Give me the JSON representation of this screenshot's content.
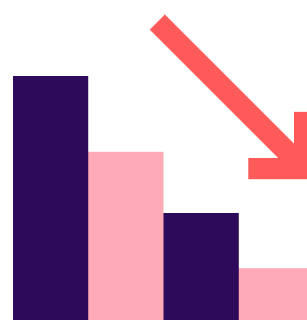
{
  "illustration": {
    "subject": "declining-bar-chart-icon",
    "colors": {
      "background": "#ffffff",
      "dark_bar": "#2e0b5a",
      "light_bar": "#ffaab7",
      "arrow": "#ff5a5a"
    },
    "bars": [
      {
        "level": 0.8,
        "tone": "dark_bar"
      },
      {
        "level": 0.55,
        "tone": "light_bar"
      },
      {
        "level": 0.35,
        "tone": "dark_bar"
      },
      {
        "level": 0.17,
        "tone": "light_bar"
      }
    ],
    "arrow_direction": "down-right"
  }
}
